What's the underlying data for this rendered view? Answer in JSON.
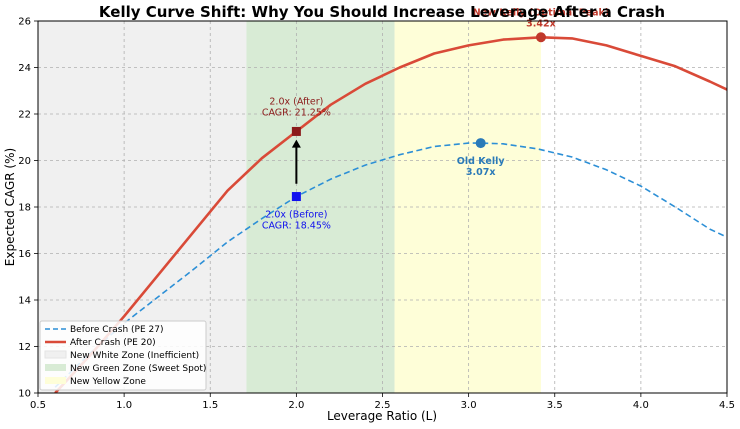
{
  "chart_data": {
    "type": "line",
    "title": "Kelly Curve Shift: Why You Should Increase Leverage After a Crash",
    "xlabel": "Leverage Ratio (L)",
    "ylabel": "Expected CAGR (%)",
    "xlim": [
      0.5,
      4.5
    ],
    "ylim": [
      10,
      26
    ],
    "x_ticks": [
      "0.5",
      "1.0",
      "1.5",
      "2.0",
      "2.5",
      "3.0",
      "3.5",
      "4.0",
      "4.5"
    ],
    "y_ticks": [
      "10",
      "12",
      "14",
      "16",
      "18",
      "20",
      "22",
      "24",
      "26"
    ],
    "grid": true,
    "legend_position": "lower-left",
    "zones": [
      {
        "name": "New White Zone (Inefficient)",
        "x_start": 0.5,
        "x_end": 1.71,
        "color": "#f0f0f0"
      },
      {
        "name": "New Green Zone (Sweet Spot)",
        "x_start": 1.71,
        "x_end": 2.57,
        "color": "#d8ebd5"
      },
      {
        "name": "New Yellow Zone",
        "x_start": 2.57,
        "x_end": 3.42,
        "color": "#fefed8"
      }
    ],
    "series": [
      {
        "name": "Before Crash (PE 27)",
        "style": "dashed",
        "color": "#2c8fd6",
        "x": [
          0.6,
          0.8,
          1.0,
          1.2,
          1.4,
          1.6,
          1.8,
          2.0,
          2.2,
          2.4,
          2.6,
          2.8,
          3.0,
          3.07,
          3.2,
          3.4,
          3.6,
          3.8,
          4.0,
          4.2,
          4.4,
          4.5
        ],
        "values": [
          10.25,
          11.7,
          13.0,
          14.15,
          15.3,
          16.5,
          17.5,
          18.45,
          19.2,
          19.8,
          20.25,
          20.6,
          20.75,
          20.75,
          20.72,
          20.5,
          20.15,
          19.6,
          18.9,
          18.0,
          17.05,
          16.7
        ]
      },
      {
        "name": "After Crash (PE 20)",
        "style": "solid",
        "color": "#d94a38",
        "x": [
          0.6,
          0.8,
          1.0,
          1.2,
          1.4,
          1.6,
          1.8,
          2.0,
          2.2,
          2.4,
          2.6,
          2.8,
          3.0,
          3.2,
          3.42,
          3.6,
          3.8,
          4.0,
          4.2,
          4.4,
          4.5
        ],
        "values": [
          10.0,
          11.6,
          13.3,
          15.1,
          16.9,
          18.7,
          20.1,
          21.25,
          22.4,
          23.3,
          24.0,
          24.6,
          24.95,
          25.2,
          25.3,
          25.25,
          24.95,
          24.5,
          24.05,
          23.4,
          23.05
        ]
      }
    ],
    "markers": [
      {
        "label": "2.0x (After)",
        "value_label": "CAGR: 21.25%",
        "x": 2.0,
        "y": 21.25,
        "shape": "square",
        "color": "#8b1a1a"
      },
      {
        "label": "2.0x (Before)",
        "value_label": "CAGR: 18.45%",
        "x": 2.0,
        "y": 18.45,
        "shape": "square",
        "color": "#1010ee"
      },
      {
        "label": "Old Kelly",
        "value_label": "3.07x",
        "x": 3.07,
        "y": 20.75,
        "shape": "circle",
        "color": "#2a7ab8"
      },
      {
        "label": "New Kelly (Optimal Peak)",
        "value_label": "3.42x",
        "x": 3.42,
        "y": 25.3,
        "shape": "circle",
        "color": "#c0392b"
      }
    ],
    "arrow": {
      "x": 2.0,
      "y_from": 19.0,
      "y_to": 20.9
    }
  }
}
